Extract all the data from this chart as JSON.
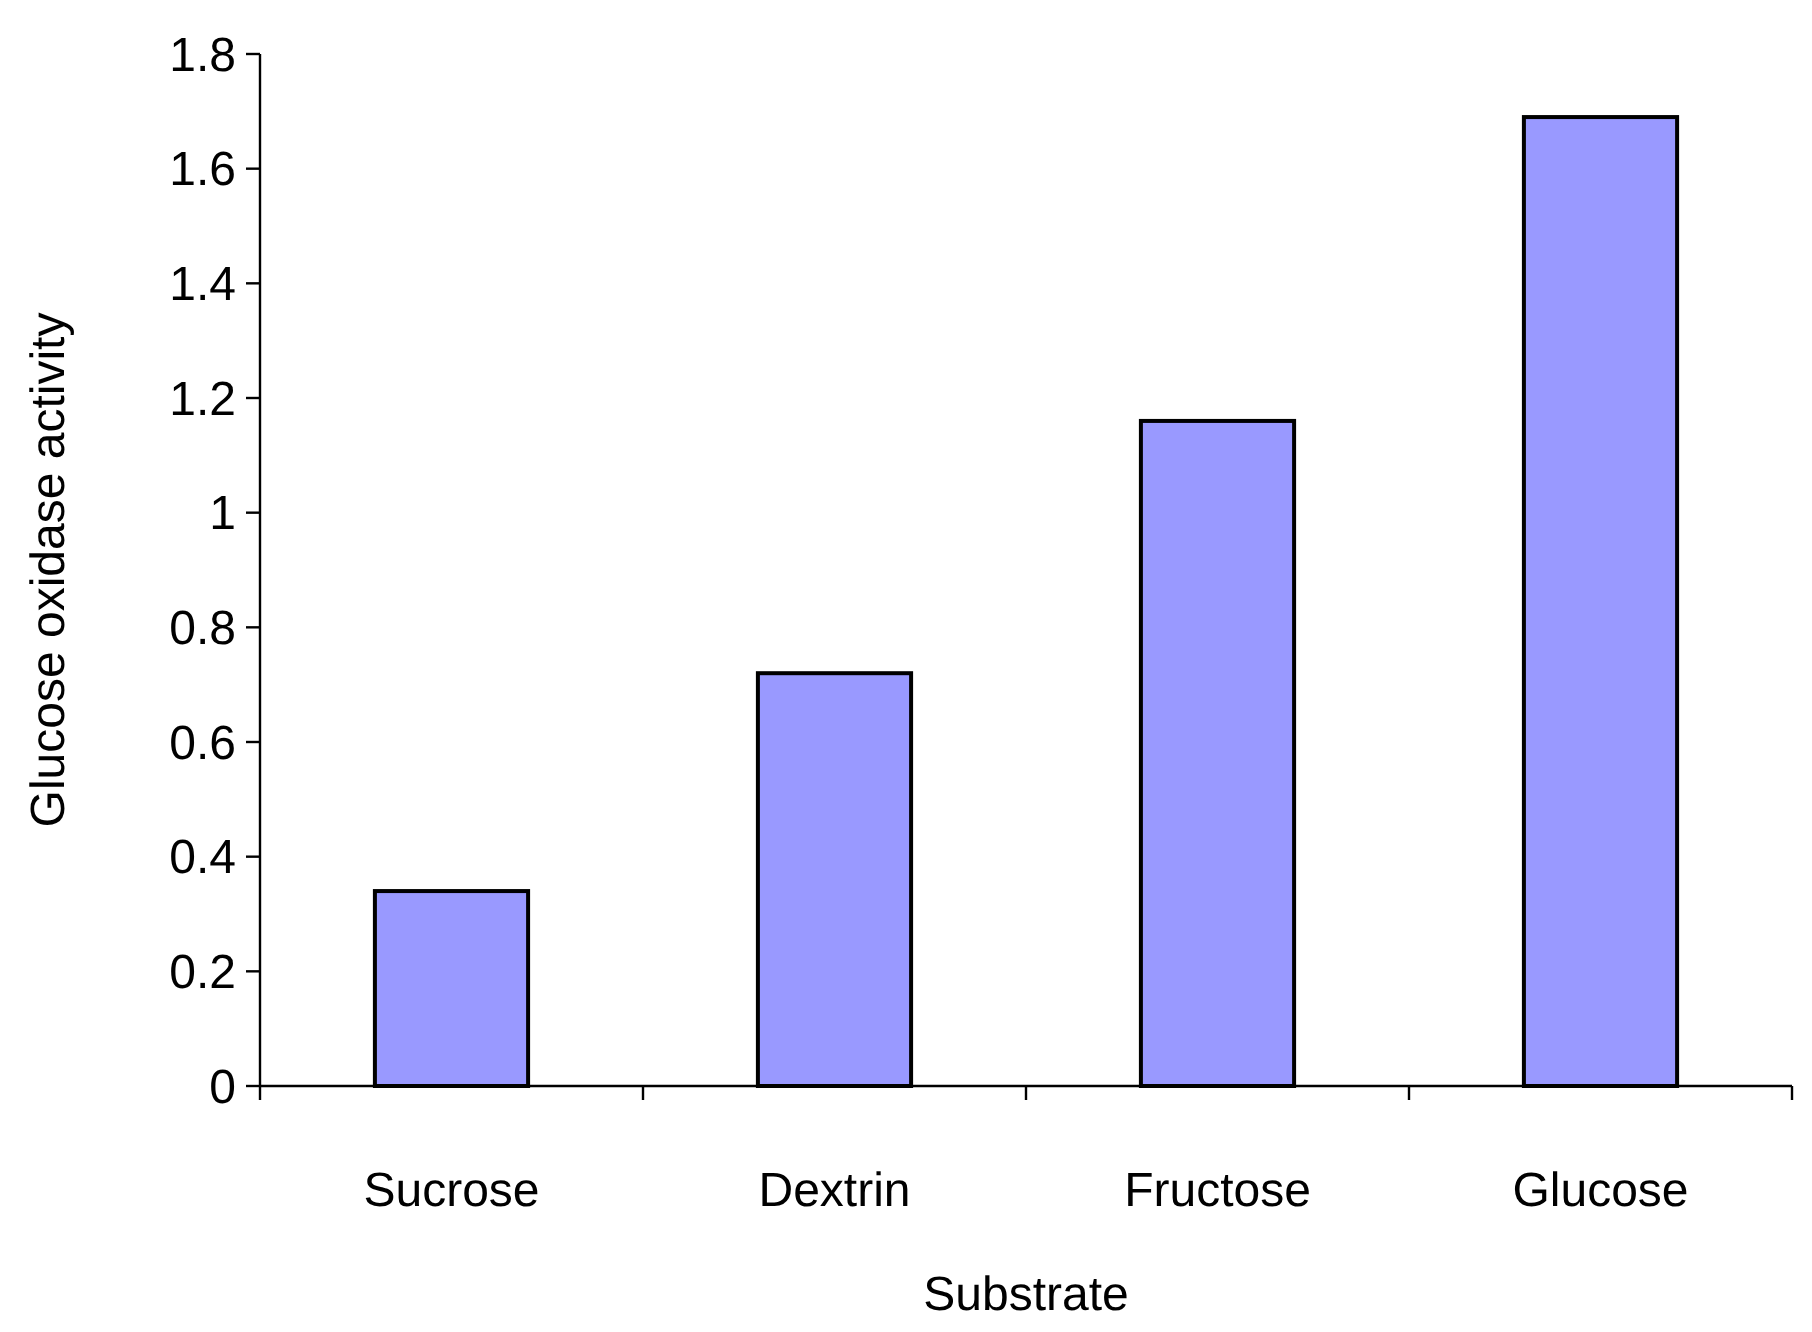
{
  "chart_data": {
    "type": "bar",
    "xlabel": "Substrate",
    "ylabel": "Glucose oxidase activity",
    "categories": [
      "Sucrose",
      "Dextrin",
      "Fructose",
      "Glucose"
    ],
    "values": [
      0.34,
      0.72,
      1.16,
      1.69
    ],
    "color": "#9999ff",
    "ylim": [
      0,
      1.8
    ],
    "yticks": [
      {
        "value": 0,
        "label": "0"
      },
      {
        "value": 0.2,
        "label": "0.2"
      },
      {
        "value": 0.4,
        "label": "0.4"
      },
      {
        "value": 0.6,
        "label": "0.6"
      },
      {
        "value": 0.8,
        "label": "0.8"
      },
      {
        "value": 1,
        "label": "1"
      },
      {
        "value": 1.2,
        "label": "1.2"
      },
      {
        "value": 1.4,
        "label": "1.4"
      },
      {
        "value": 1.6,
        "label": "1.6"
      },
      {
        "value": 1.8,
        "label": "1.8"
      }
    ],
    "grid": false
  }
}
